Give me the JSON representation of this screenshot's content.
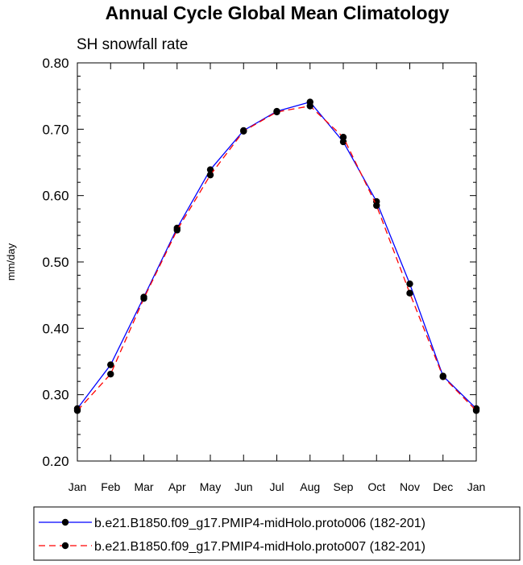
{
  "chart_data": {
    "type": "line",
    "title": "Annual Cycle Global Mean Climatology",
    "subtitle": "SH snowfall rate",
    "ylabel": "mm/day",
    "xlabel": "",
    "categories": [
      "Jan",
      "Feb",
      "Mar",
      "Apr",
      "May",
      "Jun",
      "Jul",
      "Aug",
      "Sep",
      "Oct",
      "Nov",
      "Dec",
      "Jan"
    ],
    "ylim": [
      0.2,
      0.8
    ],
    "yticks": [
      "0.20",
      "0.30",
      "0.40",
      "0.50",
      "0.60",
      "0.70",
      "0.80"
    ],
    "legend_position": "bottom",
    "series": [
      {
        "name": "b.e21.B1850.f09_g17.PMIP4-midHolo.proto006 (182-201)",
        "color": "#0000ff",
        "line_style": "solid",
        "values": [
          0.279,
          0.345,
          0.447,
          0.551,
          0.639,
          0.698,
          0.727,
          0.741,
          0.681,
          0.591,
          0.467,
          0.328,
          0.279
        ]
      },
      {
        "name": "b.e21.B1850.f09_g17.PMIP4-midHolo.proto007 (182-201)",
        "color": "#ff0000",
        "line_style": "dashed",
        "values": [
          0.276,
          0.331,
          0.445,
          0.548,
          0.631,
          0.697,
          0.726,
          0.735,
          0.688,
          0.585,
          0.453,
          0.327,
          0.276
        ]
      }
    ]
  }
}
